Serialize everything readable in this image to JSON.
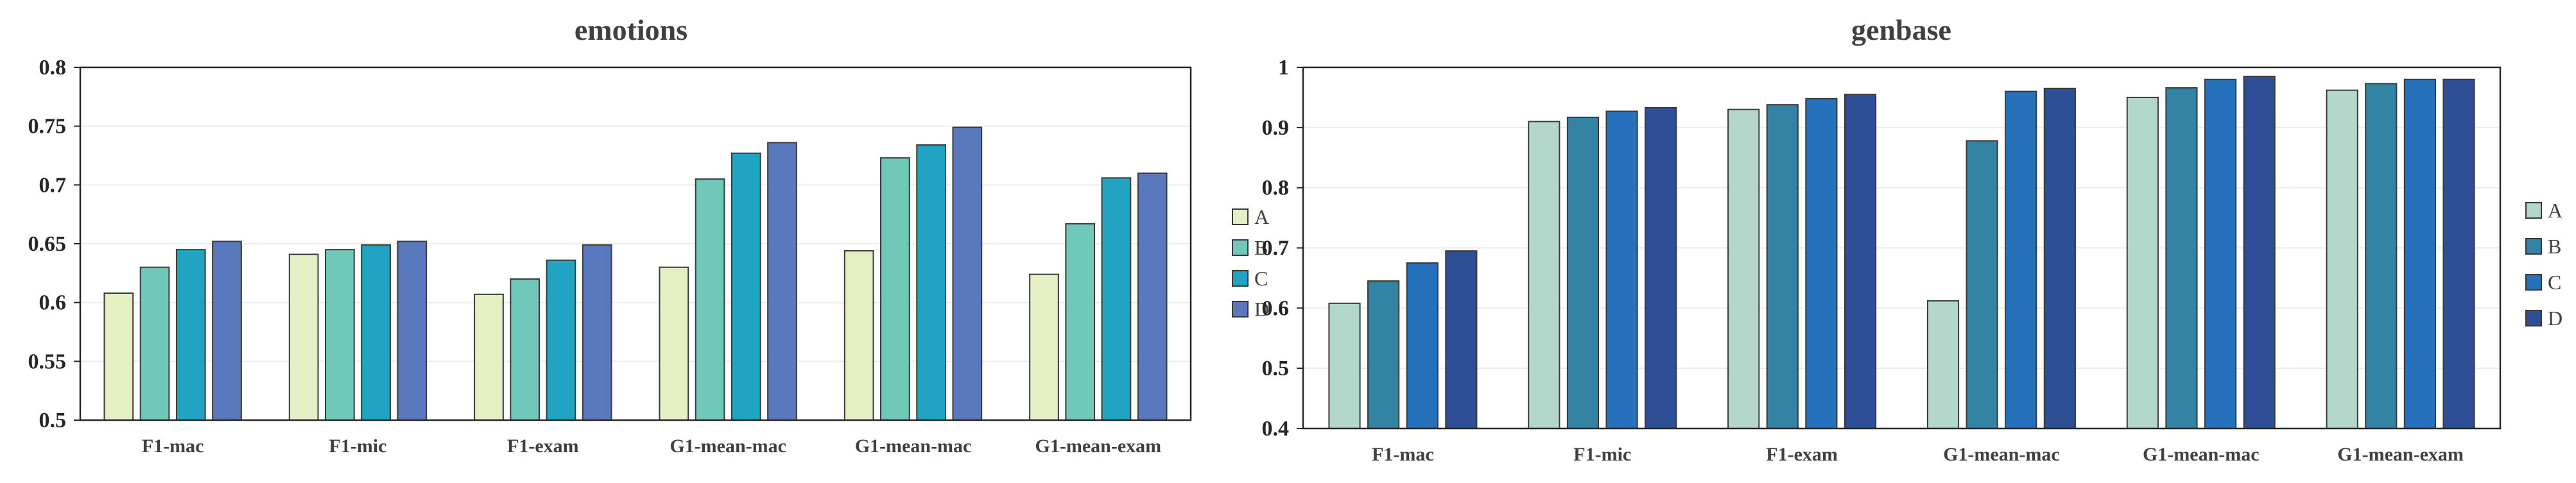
{
  "chart_data": [
    {
      "type": "bar",
      "title": "emotions",
      "xlabel": "",
      "ylabel": "",
      "categories": [
        "F1-mac",
        "F1-mic",
        "F1-exam",
        "G1-mean-mac",
        "G1-mean-mac",
        "G1-mean-exam"
      ],
      "ylim": [
        0.5,
        0.8
      ],
      "yticks": [
        0.5,
        0.55,
        0.6,
        0.65,
        0.7,
        0.75,
        0.8
      ],
      "ytick_labels": [
        "0.5",
        "0.55",
        "0.6",
        "0.65",
        "0.7",
        "0.75",
        "0.8"
      ],
      "grid": true,
      "legend_position": "right",
      "series": [
        {
          "name": "A",
          "color": "#e4efc4",
          "values": [
            0.608,
            0.641,
            0.607,
            0.63,
            0.644,
            0.624
          ]
        },
        {
          "name": "B",
          "color": "#6fc8b8",
          "values": [
            0.63,
            0.645,
            0.62,
            0.705,
            0.723,
            0.667
          ]
        },
        {
          "name": "C",
          "color": "#21a3c4",
          "values": [
            0.645,
            0.649,
            0.636,
            0.727,
            0.734,
            0.706
          ]
        },
        {
          "name": "D",
          "color": "#5a78bd",
          "values": [
            0.652,
            0.652,
            0.649,
            0.736,
            0.749,
            0.71
          ]
        }
      ]
    },
    {
      "type": "bar",
      "title": "genbase",
      "xlabel": "",
      "ylabel": "",
      "categories": [
        "F1-mac",
        "F1-mic",
        "F1-exam",
        "G1-mean-mac",
        "G1-mean-mac",
        "G1-mean-exam"
      ],
      "ylim": [
        0.4,
        1.0
      ],
      "yticks": [
        0.4,
        0.5,
        0.6,
        0.7,
        0.8,
        0.9,
        1.0
      ],
      "ytick_labels": [
        "0.4",
        "0.5",
        "0.6",
        "0.7",
        "0.8",
        "0.9",
        "1"
      ],
      "grid": true,
      "legend_position": "right",
      "series": [
        {
          "name": "A",
          "color": "#b3d8cb",
          "values": [
            0.608,
            0.91,
            0.93,
            0.612,
            0.95,
            0.962
          ]
        },
        {
          "name": "B",
          "color": "#3283a4",
          "values": [
            0.645,
            0.917,
            0.938,
            0.878,
            0.966,
            0.973
          ]
        },
        {
          "name": "C",
          "color": "#2571bc",
          "values": [
            0.675,
            0.927,
            0.948,
            0.96,
            0.98,
            0.98
          ]
        },
        {
          "name": "D",
          "color": "#2e4f95",
          "values": [
            0.695,
            0.933,
            0.955,
            0.965,
            0.985,
            0.98
          ]
        }
      ]
    }
  ]
}
